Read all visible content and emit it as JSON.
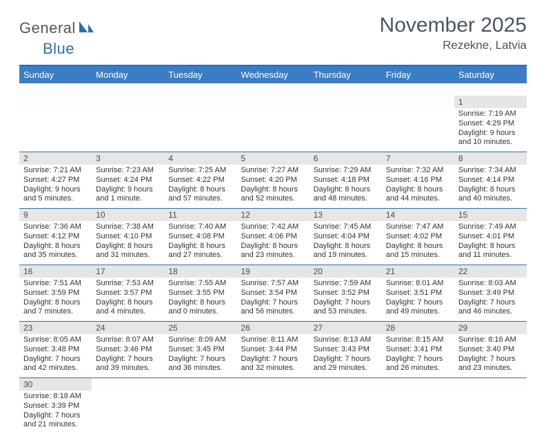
{
  "logo": {
    "general": "General",
    "blue": "Blue"
  },
  "title": "November 2025",
  "location": "Rezekne, Latvia",
  "colors": {
    "header_bg": "#3b7dc4",
    "divider": "#2a6db0",
    "daynum_bg": "#e6e6e6",
    "text": "#333333"
  },
  "day_headers": [
    "Sunday",
    "Monday",
    "Tuesday",
    "Wednesday",
    "Thursday",
    "Friday",
    "Saturday"
  ],
  "weeks": [
    [
      null,
      null,
      null,
      null,
      null,
      null,
      {
        "n": "1",
        "sunrise": "Sunrise: 7:19 AM",
        "sunset": "Sunset: 4:29 PM",
        "daylight": "Daylight: 9 hours and 10 minutes."
      }
    ],
    [
      {
        "n": "2",
        "sunrise": "Sunrise: 7:21 AM",
        "sunset": "Sunset: 4:27 PM",
        "daylight": "Daylight: 9 hours and 5 minutes."
      },
      {
        "n": "3",
        "sunrise": "Sunrise: 7:23 AM",
        "sunset": "Sunset: 4:24 PM",
        "daylight": "Daylight: 9 hours and 1 minute."
      },
      {
        "n": "4",
        "sunrise": "Sunrise: 7:25 AM",
        "sunset": "Sunset: 4:22 PM",
        "daylight": "Daylight: 8 hours and 57 minutes."
      },
      {
        "n": "5",
        "sunrise": "Sunrise: 7:27 AM",
        "sunset": "Sunset: 4:20 PM",
        "daylight": "Daylight: 8 hours and 52 minutes."
      },
      {
        "n": "6",
        "sunrise": "Sunrise: 7:29 AM",
        "sunset": "Sunset: 4:18 PM",
        "daylight": "Daylight: 8 hours and 48 minutes."
      },
      {
        "n": "7",
        "sunrise": "Sunrise: 7:32 AM",
        "sunset": "Sunset: 4:16 PM",
        "daylight": "Daylight: 8 hours and 44 minutes."
      },
      {
        "n": "8",
        "sunrise": "Sunrise: 7:34 AM",
        "sunset": "Sunset: 4:14 PM",
        "daylight": "Daylight: 8 hours and 40 minutes."
      }
    ],
    [
      {
        "n": "9",
        "sunrise": "Sunrise: 7:36 AM",
        "sunset": "Sunset: 4:12 PM",
        "daylight": "Daylight: 8 hours and 35 minutes."
      },
      {
        "n": "10",
        "sunrise": "Sunrise: 7:38 AM",
        "sunset": "Sunset: 4:10 PM",
        "daylight": "Daylight: 8 hours and 31 minutes."
      },
      {
        "n": "11",
        "sunrise": "Sunrise: 7:40 AM",
        "sunset": "Sunset: 4:08 PM",
        "daylight": "Daylight: 8 hours and 27 minutes."
      },
      {
        "n": "12",
        "sunrise": "Sunrise: 7:42 AM",
        "sunset": "Sunset: 4:06 PM",
        "daylight": "Daylight: 8 hours and 23 minutes."
      },
      {
        "n": "13",
        "sunrise": "Sunrise: 7:45 AM",
        "sunset": "Sunset: 4:04 PM",
        "daylight": "Daylight: 8 hours and 19 minutes."
      },
      {
        "n": "14",
        "sunrise": "Sunrise: 7:47 AM",
        "sunset": "Sunset: 4:02 PM",
        "daylight": "Daylight: 8 hours and 15 minutes."
      },
      {
        "n": "15",
        "sunrise": "Sunrise: 7:49 AM",
        "sunset": "Sunset: 4:01 PM",
        "daylight": "Daylight: 8 hours and 11 minutes."
      }
    ],
    [
      {
        "n": "16",
        "sunrise": "Sunrise: 7:51 AM",
        "sunset": "Sunset: 3:59 PM",
        "daylight": "Daylight: 8 hours and 7 minutes."
      },
      {
        "n": "17",
        "sunrise": "Sunrise: 7:53 AM",
        "sunset": "Sunset: 3:57 PM",
        "daylight": "Daylight: 8 hours and 4 minutes."
      },
      {
        "n": "18",
        "sunrise": "Sunrise: 7:55 AM",
        "sunset": "Sunset: 3:55 PM",
        "daylight": "Daylight: 8 hours and 0 minutes."
      },
      {
        "n": "19",
        "sunrise": "Sunrise: 7:57 AM",
        "sunset": "Sunset: 3:54 PM",
        "daylight": "Daylight: 7 hours and 56 minutes."
      },
      {
        "n": "20",
        "sunrise": "Sunrise: 7:59 AM",
        "sunset": "Sunset: 3:52 PM",
        "daylight": "Daylight: 7 hours and 53 minutes."
      },
      {
        "n": "21",
        "sunrise": "Sunrise: 8:01 AM",
        "sunset": "Sunset: 3:51 PM",
        "daylight": "Daylight: 7 hours and 49 minutes."
      },
      {
        "n": "22",
        "sunrise": "Sunrise: 8:03 AM",
        "sunset": "Sunset: 3:49 PM",
        "daylight": "Daylight: 7 hours and 46 minutes."
      }
    ],
    [
      {
        "n": "23",
        "sunrise": "Sunrise: 8:05 AM",
        "sunset": "Sunset: 3:48 PM",
        "daylight": "Daylight: 7 hours and 42 minutes."
      },
      {
        "n": "24",
        "sunrise": "Sunrise: 8:07 AM",
        "sunset": "Sunset: 3:46 PM",
        "daylight": "Daylight: 7 hours and 39 minutes."
      },
      {
        "n": "25",
        "sunrise": "Sunrise: 8:09 AM",
        "sunset": "Sunset: 3:45 PM",
        "daylight": "Daylight: 7 hours and 36 minutes."
      },
      {
        "n": "26",
        "sunrise": "Sunrise: 8:11 AM",
        "sunset": "Sunset: 3:44 PM",
        "daylight": "Daylight: 7 hours and 32 minutes."
      },
      {
        "n": "27",
        "sunrise": "Sunrise: 8:13 AM",
        "sunset": "Sunset: 3:43 PM",
        "daylight": "Daylight: 7 hours and 29 minutes."
      },
      {
        "n": "28",
        "sunrise": "Sunrise: 8:15 AM",
        "sunset": "Sunset: 3:41 PM",
        "daylight": "Daylight: 7 hours and 26 minutes."
      },
      {
        "n": "29",
        "sunrise": "Sunrise: 8:16 AM",
        "sunset": "Sunset: 3:40 PM",
        "daylight": "Daylight: 7 hours and 23 minutes."
      }
    ],
    [
      {
        "n": "30",
        "sunrise": "Sunrise: 8:18 AM",
        "sunset": "Sunset: 3:39 PM",
        "daylight": "Daylight: 7 hours and 21 minutes."
      },
      null,
      null,
      null,
      null,
      null,
      null
    ]
  ]
}
